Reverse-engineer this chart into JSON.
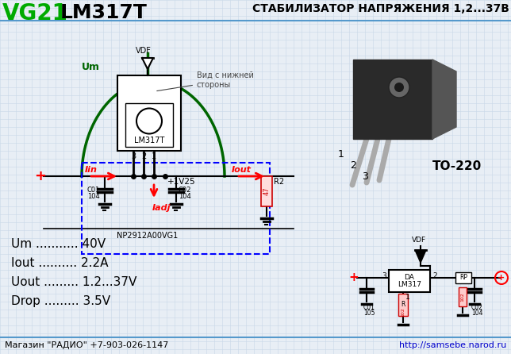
{
  "bg_color": "#e8eef5",
  "grid_color": "#c8d8e8",
  "title_vg21": "VG21",
  "title_lm317t": "LM317T",
  "title_main": "СТАБИЛИЗАТОР НАПРЯЖЕНИЯ 1,2...37В",
  "to220_label": "TO-220",
  "specs": [
    "Um ........... 40V",
    "Iout .......... 2.2A",
    "Uout ......... 1.2...37V",
    "Drop ......... 3.5V"
  ],
  "footer_left": "Магазин \"РАДИО\" +7-903-026-1147",
  "footer_right": "http://samsebe.narod.ru",
  "circuit_label": "NP2912A00VG1",
  "view_label": "Вид с нижней\nстороны"
}
